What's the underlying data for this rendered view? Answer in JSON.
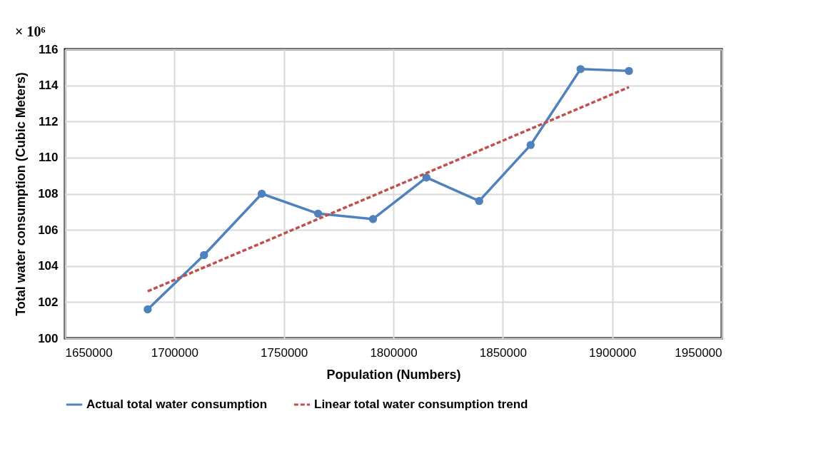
{
  "chart_data": {
    "type": "line",
    "xlabel": "Population (Numbers)",
    "ylabel": "Total water consumption (Cubic Meters)",
    "annotations": [
      "× 10⁶"
    ],
    "series": [
      {
        "name": "Actual total water consumption",
        "color": "#4f81bd",
        "marker": "circle",
        "line_style": "solid",
        "x": [
          1687800,
          1713500,
          1739900,
          1765600,
          1790700,
          1815100,
          1839200,
          1862700,
          1885500,
          1907600
        ],
        "values": [
          101.6,
          104.6,
          108.0,
          106.9,
          106.6,
          108.9,
          107.6,
          110.7,
          114.9,
          114.8
        ]
      },
      {
        "name": "Linear total water consumption trend",
        "color": "#c0504d",
        "marker": "none",
        "line_style": "dashed",
        "x": [
          1687800,
          1907600
        ],
        "values": [
          102.6,
          113.9
        ]
      }
    ],
    "xlim": [
      1650000,
      1950000
    ],
    "xticks": [
      1650000,
      1700000,
      1750000,
      1800000,
      1850000,
      1900000,
      1950000
    ],
    "ylim": [
      100,
      116
    ],
    "yticks": [
      100,
      102,
      104,
      106,
      108,
      110,
      112,
      114,
      116
    ],
    "grid": true,
    "legend": "bottom"
  }
}
